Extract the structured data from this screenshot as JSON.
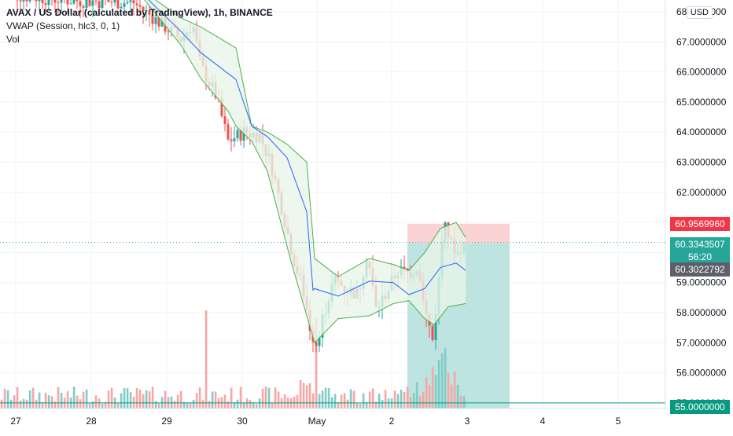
{
  "legend": {
    "title": "AVAX / US Dollar (calculated by TradingView), 1h, BINANCE",
    "vwap": "VWAP (Session, hlc3, 0, 1)",
    "vol": "Vol"
  },
  "price_scale": {
    "currency": "USD",
    "ticks": [
      "68.0000000",
      "67.0000000",
      "66.0000000",
      "65.0000000",
      "64.0000000",
      "63.0000000",
      "62.0000000",
      "61.0000000",
      "60.0000000",
      "59.0000000",
      "58.0000000",
      "57.0000000",
      "56.0000000",
      "55.0000000"
    ],
    "tick_values": [
      68,
      67,
      66,
      65,
      64,
      63,
      62,
      61,
      60,
      59,
      58,
      57,
      56,
      55
    ],
    "labels": {
      "stop_price": "60.9569960",
      "last_price": "60.3343507",
      "countdown": "56:20",
      "entry_price": "60.3022792",
      "bottom_price": "55.0000000"
    },
    "colors": {
      "stop": "#f23645",
      "last": "#26a69a",
      "entry": "#5d606b",
      "bottom": "#089981"
    }
  },
  "time_scale": {
    "labels": [
      "27",
      "28",
      "29",
      "30",
      "May",
      "2",
      "3",
      "4",
      "5"
    ]
  },
  "colors": {
    "up": "#26a69a",
    "down": "#ef5350",
    "vol_up": "#7fcdc6",
    "vol_down": "#f6a6a4",
    "vwap": "#2962ff",
    "band": "#4caf50",
    "band_fill": "#e8f5e9",
    "grid": "#f0f3fa",
    "short_profit": "#b2dfdb",
    "short_loss": "#fccbcd"
  },
  "chart_data": {
    "type": "candlestick",
    "symbol": "AVAX / US Dollar",
    "interval": "1h",
    "ylim": [
      55,
      68.3
    ],
    "last_price": 60.3343507,
    "position": {
      "type": "short",
      "entry": 60.3022792,
      "stop": 60.956996,
      "target": 55.0
    }
  }
}
